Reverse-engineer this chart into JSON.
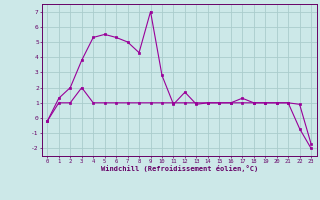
{
  "xlabel": "Windchill (Refroidissement éolien,°C)",
  "bg_color": "#cce8e8",
  "grid_color": "#aacccc",
  "line_color": "#990099",
  "spine_color": "#660066",
  "xlim": [
    -0.5,
    23.5
  ],
  "ylim": [
    -2.5,
    7.5
  ],
  "xticks": [
    0,
    1,
    2,
    3,
    4,
    5,
    6,
    7,
    8,
    9,
    10,
    11,
    12,
    13,
    14,
    15,
    16,
    17,
    18,
    19,
    20,
    21,
    22,
    23
  ],
  "yticks": [
    -2,
    -1,
    0,
    1,
    2,
    3,
    4,
    5,
    6,
    7
  ],
  "line1_x": [
    0,
    1,
    2,
    3,
    4,
    5,
    6,
    7,
    8,
    9,
    10,
    11,
    12,
    13,
    14,
    15,
    16,
    17,
    18,
    19,
    20,
    21,
    22,
    23
  ],
  "line1_y": [
    -0.2,
    1.3,
    2.0,
    3.8,
    5.3,
    5.5,
    5.3,
    5.0,
    4.3,
    7.0,
    2.8,
    0.9,
    1.7,
    0.9,
    1.0,
    1.0,
    1.0,
    1.3,
    1.0,
    1.0,
    1.0,
    1.0,
    0.9,
    -1.7
  ],
  "line2_x": [
    0,
    1,
    2,
    3,
    4,
    5,
    6,
    7,
    8,
    9,
    10,
    11,
    12,
    13,
    14,
    15,
    16,
    17,
    18,
    19,
    20,
    21,
    22,
    23
  ],
  "line2_y": [
    -0.2,
    1.0,
    1.0,
    2.0,
    1.0,
    1.0,
    1.0,
    1.0,
    1.0,
    1.0,
    1.0,
    1.0,
    1.0,
    1.0,
    1.0,
    1.0,
    1.0,
    1.0,
    1.0,
    1.0,
    1.0,
    1.0,
    -0.7,
    -2.0
  ]
}
